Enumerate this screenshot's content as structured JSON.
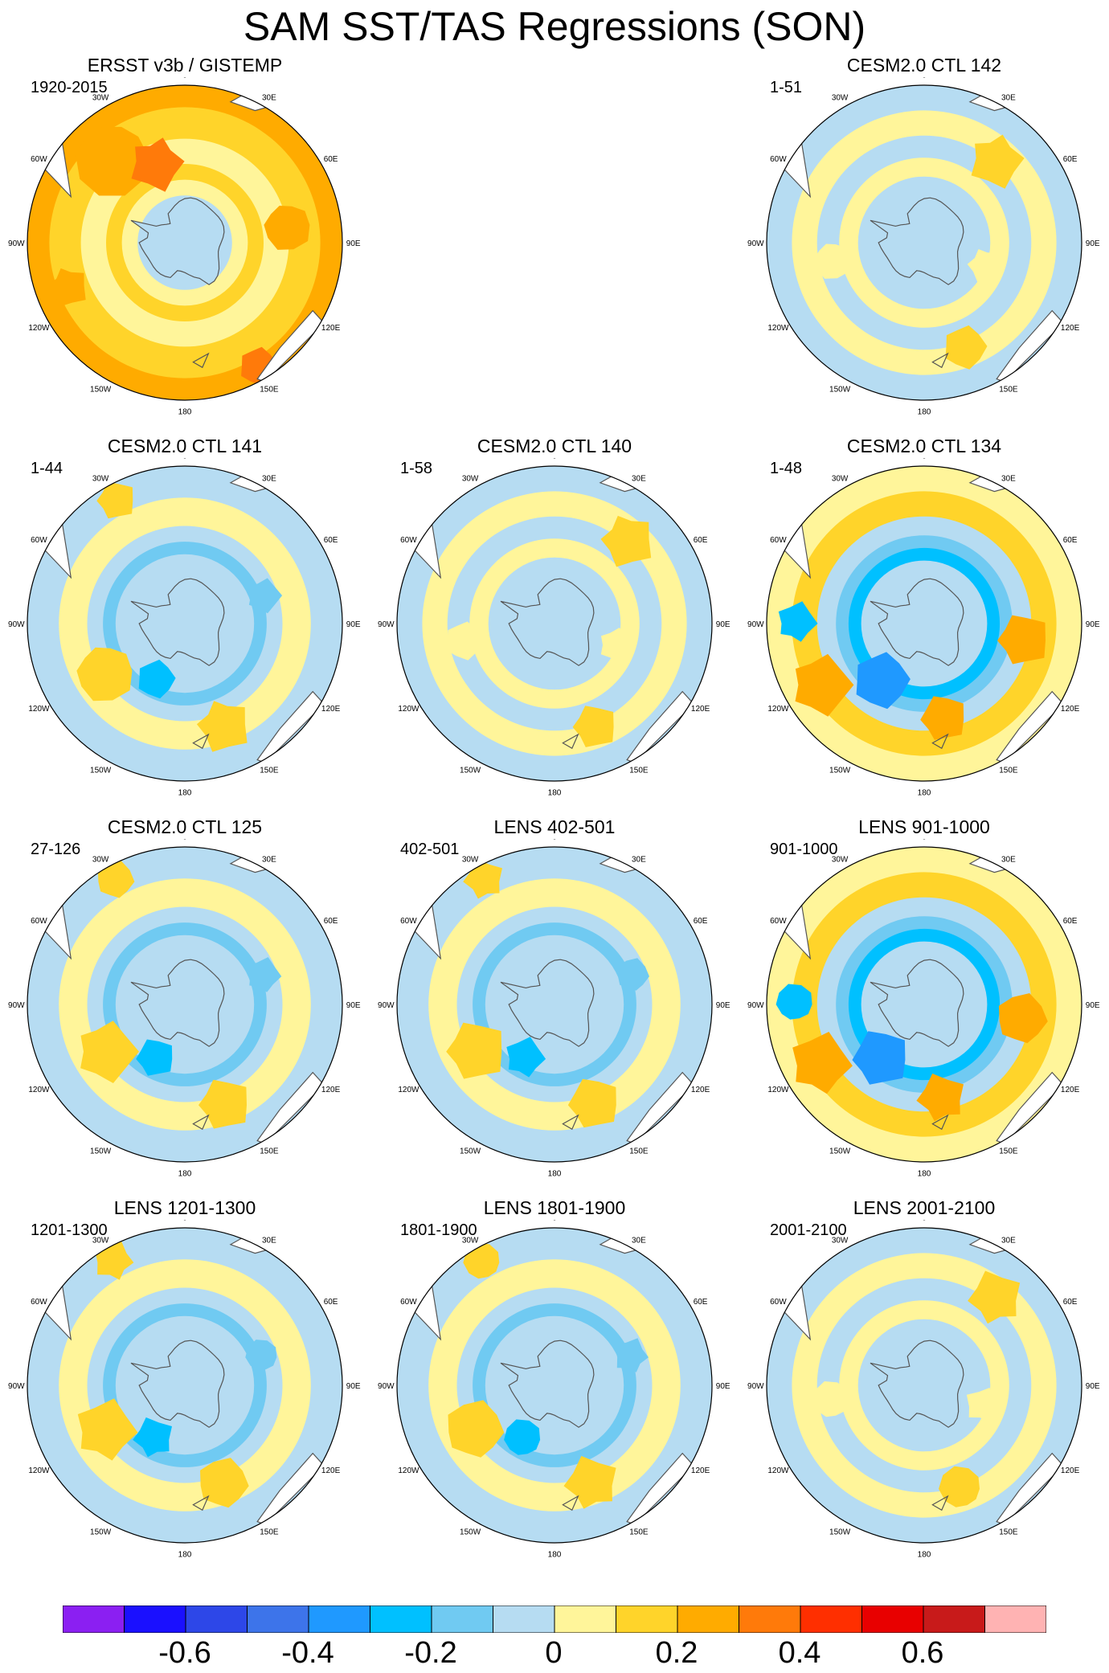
{
  "title": "SAM SST/TAS Regressions (SON)",
  "lon_labels": [
    "0",
    "30E",
    "60E",
    "90E",
    "120E",
    "150E",
    "180",
    "150W",
    "120W",
    "90W",
    "60W",
    "30W"
  ],
  "panels": [
    {
      "title": "ERSST v3b / GISTEMP",
      "years": "1920-2015",
      "regime": "warm_obs"
    },
    {
      "title": "CESM2.0 CTL 142",
      "years": "1-51",
      "regime": "weak"
    },
    {
      "title": "CESM2.0 CTL 141",
      "years": "1-44",
      "regime": "ring"
    },
    {
      "title": "CESM2.0 CTL 140",
      "years": "1-58",
      "regime": "weak"
    },
    {
      "title": "CESM2.0 CTL 134",
      "years": "1-48",
      "regime": "strong"
    },
    {
      "title": "CESM2.0 CTL 125",
      "years": "27-126",
      "regime": "ring"
    },
    {
      "title": "LENS 402-501",
      "years": "402-501",
      "regime": "ring"
    },
    {
      "title": "LENS 901-1000",
      "years": "901-1000",
      "regime": "strong"
    },
    {
      "title": "LENS 1201-1300",
      "years": "1201-1300",
      "regime": "ring"
    },
    {
      "title": "LENS 1801-1900",
      "years": "1801-1900",
      "regime": "ring"
    },
    {
      "title": "LENS 2001-2100",
      "years": "2001-2100",
      "regime": "weak"
    }
  ],
  "colorbar": {
    "colors": [
      "#8b1ff2",
      "#1a10ff",
      "#2d47e8",
      "#3d74ea",
      "#1f99ff",
      "#00c0ff",
      "#70caf2",
      "#b6dcf2",
      "#fff59a",
      "#ffd42a",
      "#ffab00",
      "#ff7a0a",
      "#ff2f00",
      "#e80000",
      "#c81a1a",
      "#ffb3b3"
    ],
    "labels": [
      "-0.6",
      "-0.4",
      "-0.2",
      "0",
      "0.2",
      "0.4",
      "0.6"
    ]
  }
}
